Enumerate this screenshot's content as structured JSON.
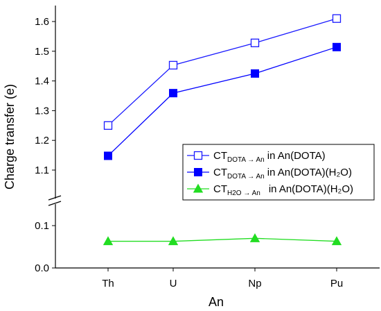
{
  "chart_data": {
    "type": "line",
    "categories": [
      "Th",
      "U",
      "Np",
      "Pu"
    ],
    "xlabel": "An",
    "ylabel": "Charge transfer (e)",
    "y_axis_break": true,
    "ylim_lower": [
      0.0,
      0.12
    ],
    "ylim_upper": [
      1.02,
      1.65
    ],
    "yticks_lower": [
      "0.0",
      "0.1"
    ],
    "yticks_upper": [
      "1.1",
      "1.2",
      "1.3",
      "1.4",
      "1.5",
      "1.6"
    ],
    "legend_position": "lower-right",
    "series": [
      {
        "name_main": "CT",
        "name_sub": "DOTA → An",
        "name_suffix": "in An(DOTA)",
        "values": [
          1.25,
          1.453,
          1.528,
          1.61
        ],
        "marker": "open-square",
        "color": "#1a1aff"
      },
      {
        "name_main": "CT",
        "name_sub": "DOTA → An",
        "name_suffix": "in An(DOTA)(H₂O)",
        "values": [
          1.148,
          1.359,
          1.425,
          1.514
        ],
        "marker": "filled-square",
        "color": "#0000ff"
      },
      {
        "name_main": "CT",
        "name_sub": "H2O → An",
        "name_suffix": "in An(DOTA)(H₂O)",
        "values": [
          0.063,
          0.063,
          0.07,
          0.063
        ],
        "marker": "filled-triangle",
        "color": "#22dd22"
      }
    ]
  }
}
